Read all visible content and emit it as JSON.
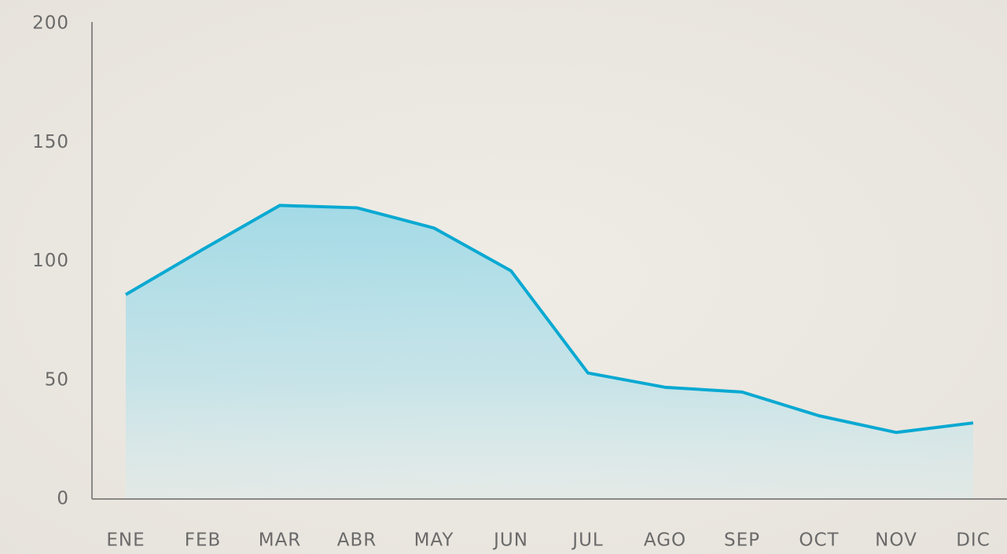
{
  "chart_data": {
    "type": "area",
    "categories": [
      "ENE",
      "FEB",
      "MAR",
      "ABR",
      "MAY",
      "JUN",
      "JUL",
      "AGO",
      "SEP",
      "OCT",
      "NOV",
      "DIC"
    ],
    "values": [
      86,
      105,
      123.5,
      122.5,
      114,
      96,
      53,
      47,
      45,
      35,
      28,
      32
    ],
    "color": "#0aa9d2",
    "ylim": [
      0,
      200
    ],
    "yticks": [
      0,
      50,
      100,
      150,
      200
    ]
  }
}
